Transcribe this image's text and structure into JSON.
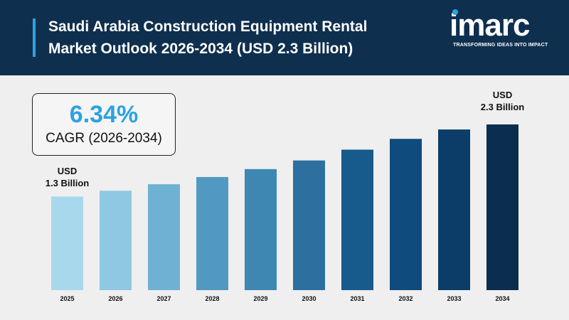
{
  "header": {
    "title_line1": "Saudi Arabia Construction Equipment Rental",
    "title_line2": "Market Outlook 2026-2034 (USD 2.3 Billion)"
  },
  "logo": {
    "word": "imarc",
    "tagline": "TRANSFORMING IDEAS INTO IMPACT"
  },
  "cagr": {
    "value": "6.34%",
    "label": "CAGR (2026-2034)"
  },
  "chart_data": {
    "type": "bar",
    "title": "Saudi Arabia Construction Equipment Rental Market Outlook 2026-2034 (USD 2.3 Billion)",
    "categories": [
      "2025",
      "2026",
      "2027",
      "2028",
      "2029",
      "2030",
      "2031",
      "2032",
      "2033",
      "2034"
    ],
    "values": [
      1.3,
      1.38,
      1.47,
      1.57,
      1.68,
      1.8,
      1.95,
      2.1,
      2.23,
      2.3
    ],
    "ylim": [
      0,
      2.3
    ],
    "grid": false,
    "colors": [
      "#a8d8ec",
      "#8ec8e2",
      "#6fb1d3",
      "#5299c1",
      "#3e87b3",
      "#2d709f",
      "#175a8c",
      "#0f4b7c",
      "#0c3d68",
      "#0b2d4f"
    ],
    "annotations": {
      "first": {
        "line1": "USD",
        "line2": "1.3 Billion"
      },
      "last": {
        "line1": "USD",
        "line2": "2.3 Billion"
      }
    }
  }
}
